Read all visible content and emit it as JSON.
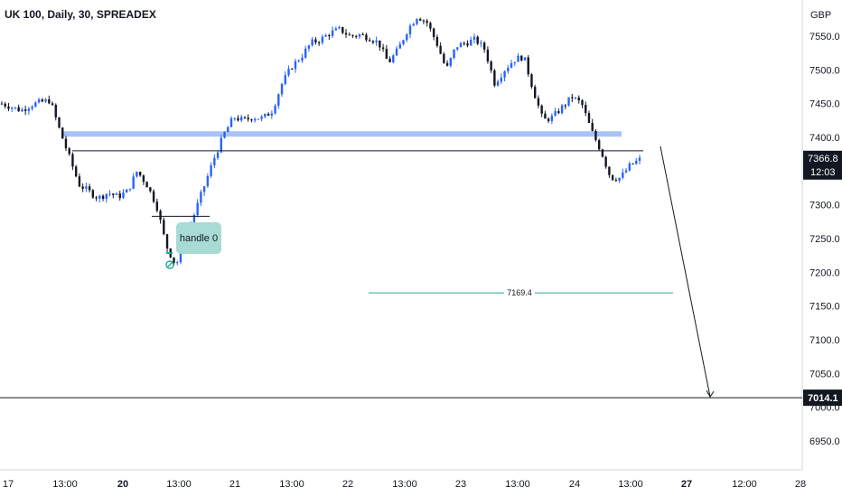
{
  "title": "UK 100, Daily, 30, SPREADEX",
  "currency": "GBP",
  "chart_data": {
    "type": "candlestick",
    "title": "UK 100, Daily, 30, SPREADEX",
    "y_unit": "GBP",
    "ylim": [
      6920,
      7600
    ],
    "y_ticks": [
      "7550.0",
      "7500.0",
      "7450.0",
      "7400.0",
      "7350.0",
      "7300.0",
      "7250.0",
      "7200.0",
      "7150.0",
      "7100.0",
      "7050.0",
      "7000.0",
      "6950.0"
    ],
    "x_ticks": [
      {
        "label": "17",
        "bold": false
      },
      {
        "label": "13:00",
        "bold": false
      },
      {
        "label": "20",
        "bold": true
      },
      {
        "label": "13:00",
        "bold": false
      },
      {
        "label": "21",
        "bold": false
      },
      {
        "label": "13:00",
        "bold": false
      },
      {
        "label": "22",
        "bold": false
      },
      {
        "label": "13:00",
        "bold": false
      },
      {
        "label": "23",
        "bold": false
      },
      {
        "label": "13:00",
        "bold": false
      },
      {
        "label": "24",
        "bold": false
      },
      {
        "label": "13:00",
        "bold": false
      },
      {
        "label": "27",
        "bold": true
      },
      {
        "label": "12:00",
        "bold": false
      },
      {
        "label": "28",
        "bold": false
      }
    ],
    "close_path": [
      7450,
      7445,
      7440,
      7448,
      7452,
      7455,
      7410,
      7370,
      7330,
      7320,
      7310,
      7318,
      7312,
      7320,
      7350,
      7330,
      7300,
      7240,
      7210,
      7245,
      7290,
      7330,
      7370,
      7405,
      7430,
      7425,
      7430,
      7428,
      7440,
      7480,
      7505,
      7520,
      7540,
      7545,
      7555,
      7560,
      7550,
      7552,
      7548,
      7540,
      7510,
      7530,
      7560,
      7580,
      7570,
      7540,
      7500,
      7535,
      7540,
      7545,
      7530,
      7480,
      7500,
      7515,
      7520,
      7470,
      7425,
      7430,
      7445,
      7460,
      7450,
      7410,
      7380,
      7340,
      7340,
      7358,
      7367
    ],
    "current_price": "7366.8",
    "countdown": "12:03",
    "target_price": "7014.1",
    "resistance_zone": 7405,
    "breakout_level": 7380,
    "handle_level": 7283,
    "midline_value": "7169.4",
    "annotation": "handle 0",
    "colors": {
      "up": "#2962ff",
      "down": "#131722",
      "zone": "#a8c3f5",
      "teal": "#26a69a",
      "annotation_bg": "#a8dbd3",
      "label_bg": "#131722"
    }
  }
}
